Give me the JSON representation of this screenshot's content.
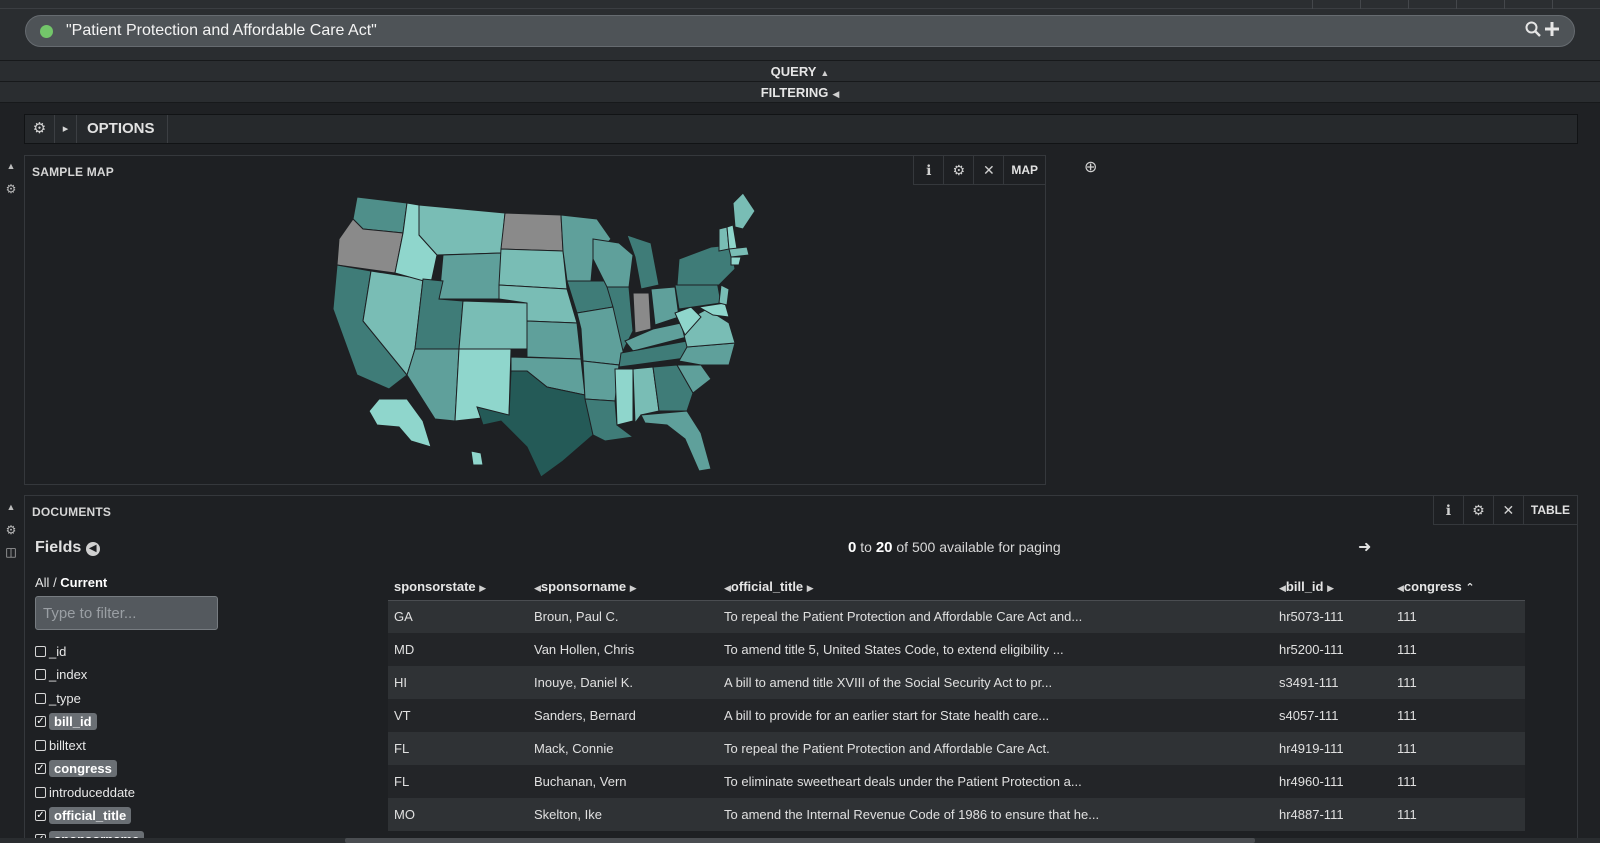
{
  "query": {
    "text": "\"Patient Protection and Affordable Care Act\"",
    "status_color": "#73c66a",
    "search_icon": "🔍",
    "add_icon": "+"
  },
  "sections": {
    "query_label": "QUERY",
    "filtering_label": "FILTERING"
  },
  "options": {
    "gear_icon": "⚙",
    "expand_icon": "▸",
    "label": "OPTIONS"
  },
  "map_panel": {
    "title": "SAMPLE MAP",
    "type_label": "MAP",
    "info_icon": "ℹ",
    "gear_icon": "⚙",
    "close_icon": "✕"
  },
  "add_panel_icon": "⊕",
  "documents_panel": {
    "title": "DOCUMENTS",
    "type_label": "TABLE",
    "info_icon": "ℹ",
    "gear_icon": "⚙",
    "close_icon": "✕"
  },
  "fields": {
    "title": "Fields",
    "all_label": "All",
    "current_label": "Current",
    "filter_placeholder": "Type to filter...",
    "items": [
      {
        "name": "_id",
        "checked": false
      },
      {
        "name": "_index",
        "checked": false
      },
      {
        "name": "_type",
        "checked": false
      },
      {
        "name": "bill_id",
        "checked": true
      },
      {
        "name": "billtext",
        "checked": false
      },
      {
        "name": "congress",
        "checked": true
      },
      {
        "name": "introduceddate",
        "checked": false
      },
      {
        "name": "official_title",
        "checked": true
      },
      {
        "name": "sponsorname",
        "checked": true
      }
    ]
  },
  "paging": {
    "from": "0",
    "to_word": "to",
    "to": "20",
    "suffix": "of 500 available for paging"
  },
  "table": {
    "columns": [
      "sponsorstate",
      "sponsorname",
      "official_title",
      "bill_id",
      "congress"
    ],
    "rows": [
      [
        "GA",
        "Broun, Paul C.",
        "To repeal the Patient Protection and Affordable Care Act and...",
        "hr5073-111",
        "111"
      ],
      [
        "MD",
        "Van Hollen, Chris",
        "To amend title 5, United States Code, to extend eligibility ...",
        "hr5200-111",
        "111"
      ],
      [
        "HI",
        "Inouye, Daniel K.",
        "A bill to amend title XVIII of the Social Security Act to pr...",
        "s3491-111",
        "111"
      ],
      [
        "VT",
        "Sanders, Bernard",
        "A bill to provide for an earlier start for State health care...",
        "s4057-111",
        "111"
      ],
      [
        "FL",
        "Mack, Connie",
        "To repeal the Patient Protection and Affordable Care Act.",
        "hr4919-111",
        "111"
      ],
      [
        "FL",
        "Buchanan, Vern",
        "To eliminate sweetheart deals under the Patient Protection a...",
        "hr4960-111",
        "111"
      ],
      [
        "MO",
        "Skelton, Ike",
        "To amend the Internal Revenue Code of 1986 to ensure that he...",
        "hr4887-111",
        "111"
      ]
    ]
  },
  "map_colors": {
    "light": "#8fd6cc",
    "mid_light": "#79bdb5",
    "mid": "#5fa09b",
    "dark": "#3f7c78",
    "darkest": "#245a57",
    "no_data": "#8a8a8a"
  }
}
